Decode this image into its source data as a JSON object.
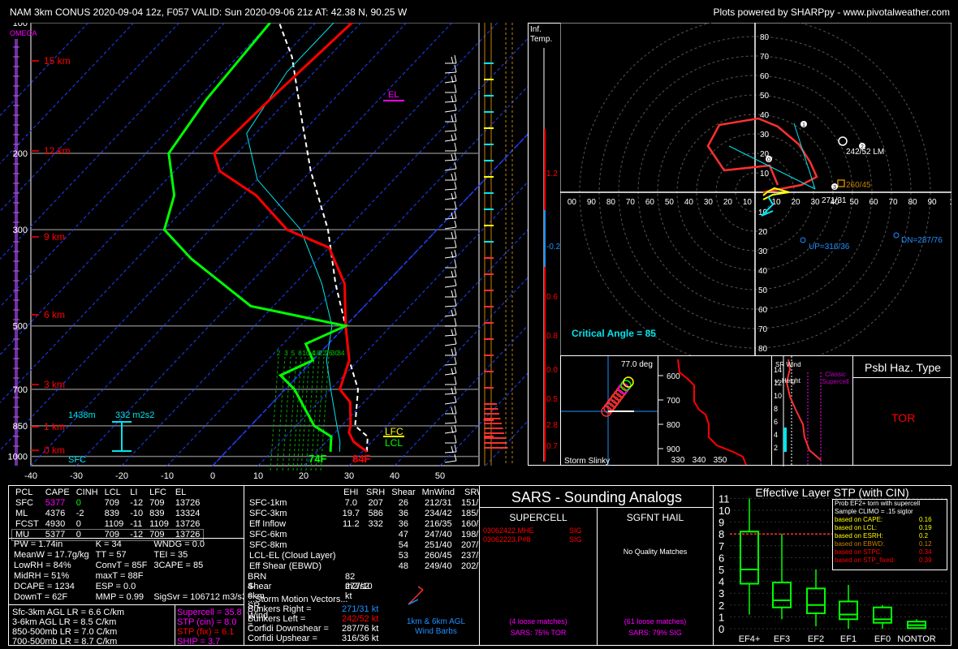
{
  "header": {
    "title": "NAM 3km CONUS 2020-09-04 12z, F057   VALID: Sun 2020-09-06 21z   AT: 42.38 N, 90.25 W",
    "credit": "Plots powered by SHARPpy - www.pivotalweather.com"
  },
  "skewt": {
    "omega_label": "OMEGA",
    "pressure_ticks": [
      "100",
      "200",
      "300",
      "500",
      "700",
      "850",
      "1000"
    ],
    "height_labels": [
      "15 km",
      "12 km",
      "9 km",
      "6 km",
      "3 km",
      "1 km",
      "0 km"
    ],
    "temp_ticks": [
      "-40",
      "-30",
      "-20",
      "-10",
      "0",
      "10",
      "20",
      "30",
      "40",
      "50"
    ],
    "mixing_ratio_labels": [
      "2",
      "3",
      "5",
      "8",
      "10",
      "14",
      "18",
      "22",
      "26",
      "30",
      "34"
    ],
    "annotations": {
      "el": "EL",
      "lfc": "LFC",
      "lcl": "LCL",
      "sfc": "SFC",
      "sfc_temp": "84F",
      "sfc_dew": "74F",
      "eff_base": "1438m",
      "eff_srh": "332 m2s2"
    },
    "colors": {
      "temp": "#ff0000",
      "dew": "#00ff00",
      "parcel": "#ffffff",
      "wetbulb": "#00e5ee"
    }
  },
  "inferred_temp": {
    "label_line1": "Inf.",
    "label_line2": "Temp.",
    "ticks": [
      "1.2",
      "-0.2",
      "0.6",
      "0.8",
      "0.0",
      "0.5",
      "2.8",
      "0.7"
    ]
  },
  "hodograph": {
    "ring_labels": [
      "10",
      "20",
      "30",
      "40",
      "50",
      "60",
      "70",
      "80"
    ],
    "x_labels_left": [
      "00",
      "90",
      "80",
      "70",
      "60",
      "50",
      "40",
      "30",
      "20",
      "10"
    ],
    "x_labels_right": [
      "10",
      "20",
      "30",
      "40",
      "50",
      "60",
      "70",
      "80",
      "90",
      "1"
    ],
    "point_labels": [
      "1",
      "2",
      "3",
      "0"
    ],
    "lm_label": "242/52 LM",
    "mean_label": "260/45",
    "rm_label": "271/31",
    "up_label": "UP=316/36",
    "dn_label": "DN=287/76",
    "critical_angle": "Critical Angle = 85"
  },
  "storm_slinky": {
    "label": "Storm Slinky",
    "deg": "77.0 deg"
  },
  "theta_panel": {
    "y_ticks": [
      "600",
      "700",
      "800",
      "900"
    ],
    "x_ticks": [
      "330",
      "340",
      "350"
    ]
  },
  "srwind_panel": {
    "title_line1": "SR Wind",
    "title_line2": "v. Height",
    "classic": "Classic Supercell",
    "y_ticks": [
      "14",
      "12",
      "10",
      "8",
      "6",
      "4",
      "2"
    ]
  },
  "hazard": {
    "title": "Psbl Haz. Type",
    "value": "TOR"
  },
  "parcel_table": {
    "headers": [
      "PCL",
      "CAPE",
      "CINH",
      "LCL",
      "LI",
      "LFC",
      "EL"
    ],
    "rows": [
      [
        "SFC",
        "5377",
        "0",
        "709",
        "-12",
        "709",
        "13726"
      ],
      [
        "ML",
        "4376",
        "-2",
        "839",
        "-10",
        "839",
        "13324"
      ],
      [
        "FCST",
        "4930",
        "0",
        "1109",
        "-11",
        "1109",
        "13726"
      ],
      [
        "MU",
        "5377",
        "0",
        "709",
        "-12",
        "709",
        "13726"
      ]
    ]
  },
  "thermo_indices": [
    [
      "PW = 1.74in",
      "K = 34",
      "WNDG = 0.0"
    ],
    [
      "MeanW = 17.7g/kg",
      "TT = 57",
      "TEI = 35"
    ],
    [
      "LowRH = 84%",
      "ConvT = 85F",
      "3CAPE = 85"
    ],
    [
      "MidRH = 51%",
      "maxT = 88F",
      ""
    ],
    [
      "DCAPE = 1234",
      "ESP = 0.0",
      ""
    ],
    [
      "DownT = 62F",
      "MMP = 0.99",
      "SigSvr = 106712 m3/s3"
    ]
  ],
  "lapse_rates": [
    "Sfc-3km AGL LR = 6.6 C/km",
    "3-6km AGL LR = 8.5 C/km",
    "850-500mb LR = 7.0 C/km",
    "700-500mb LR = 8.7 C/km"
  ],
  "composite": {
    "supercell": "Supercell = 35.8",
    "stp_cin": "STP (cin) = 8.0",
    "stp_fix": "STP (fix) = 6.1",
    "ship": "SHIP = 3.7"
  },
  "kin_table": {
    "headers": [
      "",
      "EHI",
      "SRH",
      "Shear",
      "MnWind",
      "SRW"
    ],
    "rows": [
      [
        "SFC-1km",
        "7.0",
        "207",
        "26",
        "212/31",
        "151/31"
      ],
      [
        "SFC-3km",
        "19.7",
        "586",
        "36",
        "234/42",
        "185/25"
      ],
      [
        "Eff Inflow",
        "11.2",
        "332",
        "36",
        "216/35",
        "160/31"
      ],
      [
        "",
        "",
        "",
        "",
        "",
        ""
      ],
      [
        "SFC-6km",
        "",
        "",
        "47",
        "247/40",
        "198/17"
      ],
      [
        "SFC-8km",
        "",
        "",
        "54",
        "251/40",
        "207/15"
      ],
      [
        "LCL-EL (Cloud Layer)",
        "",
        "",
        "53",
        "260/45",
        "237/15"
      ],
      [
        "Eff Shear (EBWD)",
        "",
        "",
        "48",
        "249/40",
        "202/16"
      ]
    ],
    "brn_label": "BRN Shear =",
    "brn_value": "82 m2/s2",
    "srw46_label": "4-6km SR Wind =",
    "srw46_value": "277/10 kt",
    "motion_title": "...Storm Motion Vectors...",
    "bunkers_right_label": "Bunkers Right =",
    "bunkers_right_value": "271/31 kt",
    "bunkers_left_label": "Bunkers Left =",
    "bunkers_left_value": "242/52 kt",
    "corfidi_down_label": "Corfidi Downshear =",
    "corfidi_down_value": "287/76 kt",
    "corfidi_up_label": "Corfidi Upshear =",
    "corfidi_up_value": "316/36 kt",
    "barb_label_line1": "1km & 6km AGL",
    "barb_label_line2": "Wind Barbs"
  },
  "sars": {
    "title": "SARS - Sounding Analogs",
    "supercell_title": "SUPERCELL",
    "hail_title": "SGFNT HAIL",
    "matches": [
      {
        "name": "03062422.MHE",
        "tag": "SIG"
      },
      {
        "name": "03062223.P#8",
        "tag": "SIG"
      }
    ],
    "no_quality": "No Quality Matches",
    "supercell_loose": "(4 loose matches)",
    "supercell_pct": "SARS: 75% TOR",
    "hail_loose": "(61 loose matches)",
    "hail_pct": "SARS: 79% SIG"
  },
  "stp_panel": {
    "title": "Effective Layer STP (with CIN)",
    "y_ticks": [
      "0",
      "1",
      "2",
      "3",
      "4",
      "5",
      "6",
      "7",
      "8",
      "9",
      "10",
      "11"
    ],
    "categories": [
      "EF4+",
      "EF3",
      "EF2",
      "EF1",
      "EF0",
      "NONTOR"
    ],
    "prob_title1": "Prob EF2+ torn with supercell",
    "prob_title2": "Sample CLIMO = .15 sigtor",
    "prob_rows": [
      {
        "label": "based on CAPE:",
        "value": "0.16",
        "color": "#ffff00"
      },
      {
        "label": "based on LCL:",
        "value": "0.19",
        "color": "#ffff00"
      },
      {
        "label": "based on ESRH:",
        "value": "0.2",
        "color": "#ffff00"
      },
      {
        "label": "based on EBWD:",
        "value": "0.12",
        "color": "#c88200"
      },
      {
        "label": "based on STPC:",
        "value": "0.34",
        "color": "#ff0000"
      },
      {
        "label": "based on STP_fixed:",
        "value": "0.39",
        "color": "#ff0000"
      }
    ]
  },
  "chart_data": {
    "type": "line",
    "title": "",
    "xlabel": "",
    "ylabel": "",
    "xlim": [
      -40,
      50
    ],
    "ylim": [
      1000,
      100
    ],
    "series": [
      {
        "name": "",
        "x": [
          31,
          26,
          23,
          22,
          17,
          12,
          8,
          0,
          -9,
          -20,
          -33,
          -47,
          -60,
          -65,
          -64,
          -62
        ],
        "y": [
          975,
          925,
          880,
          850,
          750,
          700,
          600,
          500,
          400,
          330,
          300,
          250,
          220,
          200,
          150,
          100
        ]
      },
      {
        "name": "",
        "x": [
          23,
          22,
          20,
          14,
          2,
          -4,
          0,
          -5,
          0,
          -25,
          -48,
          -60,
          -65,
          -75,
          -78,
          -80
        ],
        "y": [
          975,
          950,
          900,
          850,
          700,
          650,
          600,
          550,
          500,
          450,
          350,
          300,
          250,
          200,
          150,
          100
        ]
      }
    ],
    "stp_boxes": [
      {
        "category": "EF4+",
        "min": 1.2,
        "q1": 3.8,
        "median": 5.0,
        "q3": 8.2,
        "max": 11.0
      },
      {
        "category": "EF3",
        "min": 0.8,
        "q1": 1.8,
        "median": 2.4,
        "q3": 3.9,
        "max": 8.0
      },
      {
        "category": "EF2",
        "min": 0.2,
        "q1": 1.3,
        "median": 2.0,
        "q3": 3.4,
        "max": 5.0
      },
      {
        "category": "EF1",
        "min": 0.0,
        "q1": 0.8,
        "median": 1.2,
        "q3": 2.3,
        "max": 3.7
      },
      {
        "category": "EF0",
        "min": 0.0,
        "q1": 0.5,
        "median": 0.8,
        "q3": 1.8,
        "max": 2.0
      },
      {
        "category": "NONTOR",
        "min": 0.0,
        "q1": 0.05,
        "median": 0.3,
        "q3": 0.6,
        "max": 0.8
      }
    ],
    "stp_marker": 8.0
  }
}
